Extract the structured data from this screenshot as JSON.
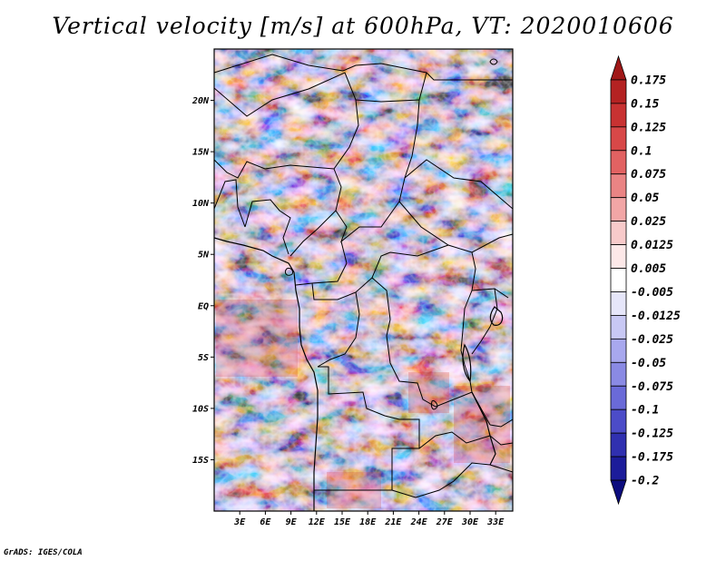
{
  "title": "Vertical velocity [m/s] at 600hPa, VT: 2020010606",
  "credit": "GrADS: IGES/COLA",
  "map": {
    "lat_range": [
      -20,
      25
    ],
    "lon_range": [
      0,
      35
    ],
    "lat_ticks": [
      {
        "value": 20,
        "label": "20N"
      },
      {
        "value": 15,
        "label": "15N"
      },
      {
        "value": 10,
        "label": "10N"
      },
      {
        "value": 5,
        "label": "5N"
      },
      {
        "value": 0,
        "label": "EQ"
      },
      {
        "value": -5,
        "label": "5S"
      },
      {
        "value": -10,
        "label": "10S"
      },
      {
        "value": -15,
        "label": "15S"
      }
    ],
    "lon_ticks": [
      {
        "value": 3,
        "label": "3E"
      },
      {
        "value": 6,
        "label": "6E"
      },
      {
        "value": 9,
        "label": "9E"
      },
      {
        "value": 12,
        "label": "12E"
      },
      {
        "value": 15,
        "label": "15E"
      },
      {
        "value": 18,
        "label": "18E"
      },
      {
        "value": 21,
        "label": "21E"
      },
      {
        "value": 24,
        "label": "24E"
      },
      {
        "value": 27,
        "label": "27E"
      },
      {
        "value": 30,
        "label": "30E"
      },
      {
        "value": 33,
        "label": "33E"
      }
    ]
  },
  "colorbar": {
    "levels": [
      "0.175",
      "0.15",
      "0.125",
      "0.1",
      "0.075",
      "0.05",
      "0.025",
      "0.0125",
      "0.005",
      "-0.005",
      "-0.0125",
      "-0.025",
      "-0.05",
      "-0.075",
      "-0.1",
      "-0.125",
      "-0.175",
      "-0.2"
    ],
    "colors": [
      "#a01818",
      "#b42222",
      "#c83232",
      "#d84848",
      "#e26262",
      "#ea8484",
      "#f2a6a6",
      "#f8caca",
      "#fde8e8",
      "#ffffff",
      "#e6e6fa",
      "#c8c8f4",
      "#a8a8ee",
      "#8a8ae4",
      "#6a6ad8",
      "#4c4cc8",
      "#3030b0",
      "#1c1c9a",
      "#0c0c7e"
    ]
  }
}
